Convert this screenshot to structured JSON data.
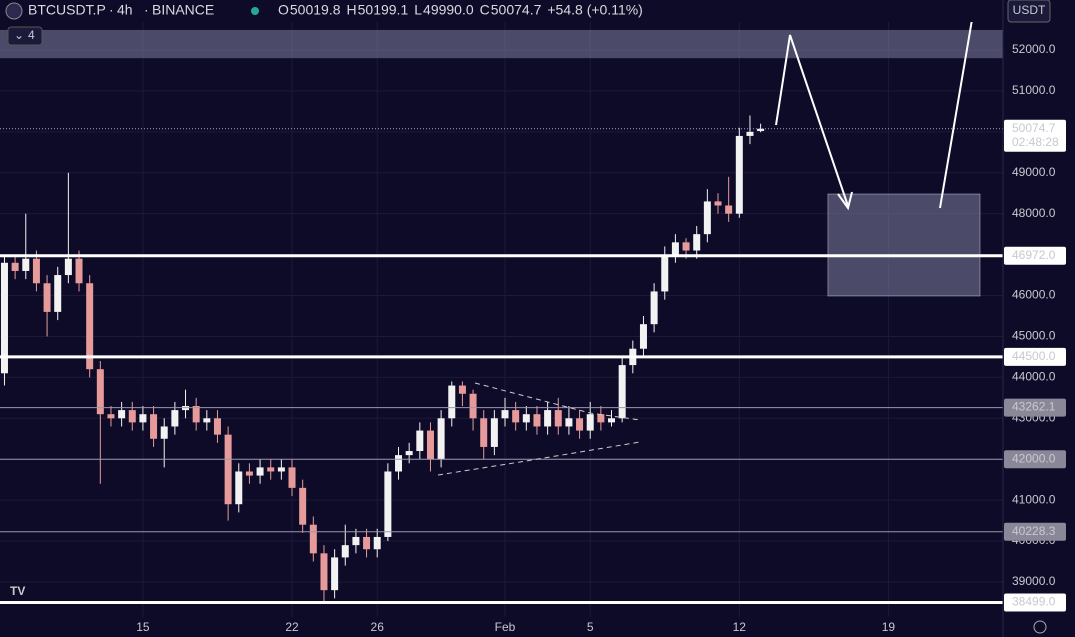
{
  "header": {
    "symbol": "BTCUSDT.P",
    "interval": "4h",
    "exchange": "BINANCE",
    "ohlc": [
      {
        "key": "O",
        "value": "50019.8"
      },
      {
        "key": "H",
        "value": "50199.1"
      },
      {
        "key": "L",
        "value": "49990.0"
      },
      {
        "key": "C",
        "value": "50074.7"
      }
    ],
    "change": "+54.8 (+0.11%)",
    "indicators": "4",
    "currency": "USDT"
  },
  "chart_data": {
    "type": "candlestick",
    "up_color": "#f2f2f2",
    "down_color": "#e79a9a",
    "grid": true,
    "xlim": [
      8.29,
      55.38
    ],
    "ylim": [
      38144,
      53222
    ],
    "xticks": [
      15,
      22,
      26,
      {
        "value": 32,
        "label": "Feb"
      },
      {
        "value": 36,
        "label": "5"
      },
      {
        "value": 43,
        "label": "12"
      },
      {
        "value": 50,
        "label": "19"
      }
    ],
    "yticks": [
      {
        "value": 39000,
        "label": "39000.0"
      },
      {
        "value": 40000,
        "label": "40000.0"
      },
      {
        "value": 41000,
        "label": "41000.0"
      },
      {
        "value": 42000,
        "label": "42000.0"
      },
      {
        "value": 43000,
        "label": "43000.0"
      },
      {
        "value": 44000,
        "label": "44000.0"
      },
      {
        "value": 45000,
        "label": "45000.0"
      },
      {
        "value": 46000,
        "label": "46000.0"
      },
      {
        "value": 47000,
        "label": "47000.0"
      },
      {
        "value": 48000,
        "label": "48000.0"
      },
      {
        "value": 49000,
        "label": "49000.0"
      },
      {
        "value": 50000,
        "label": "50000.0"
      },
      {
        "value": 51000,
        "label": "51000.0"
      },
      {
        "value": 52000,
        "label": "52000.0"
      }
    ],
    "levels": [
      {
        "value": 46972,
        "label": "46972.0",
        "style": "thick"
      },
      {
        "value": 44500,
        "label": "44500.0",
        "style": "thick"
      },
      {
        "value": 43262.1,
        "label": "43262.1",
        "style": "thin"
      },
      {
        "value": 42000,
        "label": "42000.0",
        "style": "thin"
      },
      {
        "value": 40228.3,
        "label": "40228.3",
        "style": "thin"
      },
      {
        "value": 38499,
        "label": "38499.0",
        "style": "thick"
      }
    ],
    "zones": [
      {
        "x": [
          8.29,
          55.38
        ],
        "y": [
          51800,
          52490
        ]
      },
      {
        "x": [
          47.16,
          54.3
        ],
        "y": [
          45990,
          48480
        ]
      }
    ],
    "last_price": 50074.7,
    "countdown": "02:48:28",
    "x": [
      8.5,
      9,
      9.5,
      10,
      10.5,
      11,
      11.5,
      12,
      12.5,
      13,
      13.5,
      14,
      14.5,
      15,
      15.5,
      16,
      16.5,
      17,
      17.5,
      18,
      18.5,
      19,
      19.5,
      20,
      20.5,
      21,
      21.5,
      22,
      22.5,
      23,
      23.5,
      24,
      24.5,
      25,
      25.5,
      26,
      26.5,
      27,
      27.5,
      28,
      28.5,
      29,
      29.5,
      30,
      30.5,
      31,
      31.5,
      32,
      32.5,
      33,
      33.5,
      34,
      34.5,
      35,
      35.5,
      36,
      36.5,
      37,
      37.5,
      38,
      38.5,
      39,
      39.5,
      40,
      40.5,
      41,
      41.5,
      42,
      42.5,
      43,
      43.5,
      44
    ],
    "open": [
      44100,
      46800,
      46600,
      46900,
      46300,
      45600,
      46500,
      46900,
      46300,
      44200,
      43100,
      43000,
      43200,
      42900,
      43100,
      42500,
      42800,
      43200,
      43300,
      42900,
      43000,
      42600,
      40900,
      41700,
      41600,
      41800,
      41700,
      41800,
      41300,
      40400,
      39700,
      38800,
      39600,
      39900,
      40100,
      39800,
      40100,
      41700,
      42100,
      42200,
      42700,
      42000,
      43000,
      43800,
      43600,
      43000,
      42300,
      43000,
      43200,
      42900,
      43100,
      42800,
      43200,
      42800,
      43000,
      42700,
      43100,
      42900,
      43000,
      44300,
      44700,
      45300,
      46100,
      47000,
      47300,
      47100,
      47500,
      48300,
      48200,
      48000,
      49900,
      50019.8
    ],
    "high": [
      47000,
      47000,
      48000,
      47100,
      46500,
      46700,
      49000,
      47100,
      46500,
      44400,
      43300,
      43400,
      43400,
      43300,
      43300,
      43000,
      43400,
      43700,
      43500,
      43200,
      43200,
      42800,
      41900,
      41900,
      42000,
      42000,
      42000,
      42000,
      41500,
      40600,
      39900,
      39800,
      40400,
      40300,
      40300,
      40300,
      41900,
      42300,
      42400,
      42900,
      42900,
      43200,
      43900,
      43900,
      43700,
      43200,
      43200,
      43500,
      43400,
      43300,
      43300,
      43400,
      43500,
      43300,
      43200,
      43400,
      43300,
      43200,
      44500,
      44900,
      45500,
      46300,
      47200,
      47500,
      47400,
      47700,
      48600,
      48500,
      48900,
      50100,
      50400,
      50199.1
    ],
    "low": [
      43800,
      46400,
      46400,
      46100,
      45000,
      45400,
      46300,
      46100,
      44000,
      41400,
      42800,
      42800,
      42700,
      42700,
      42300,
      41800,
      42600,
      43000,
      42700,
      42700,
      42400,
      40500,
      40700,
      41400,
      41400,
      41500,
      41500,
      41100,
      40200,
      39500,
      38500,
      38600,
      39400,
      39700,
      39600,
      39600,
      40000,
      41500,
      41900,
      42000,
      41700,
      41800,
      42800,
      43300,
      42700,
      42000,
      42100,
      42800,
      42700,
      42700,
      42600,
      42600,
      42600,
      42600,
      42500,
      42500,
      42700,
      42800,
      42900,
      44100,
      44500,
      45100,
      45900,
      46800,
      46900,
      46900,
      47300,
      48000,
      47800,
      47900,
      49700,
      49990
    ],
    "close": [
      46800,
      46600,
      46900,
      46300,
      45600,
      46500,
      46900,
      46300,
      44200,
      43100,
      43000,
      43200,
      42900,
      43100,
      42500,
      42800,
      43200,
      43300,
      42900,
      43000,
      42600,
      40900,
      41700,
      41600,
      41800,
      41700,
      41800,
      41300,
      40400,
      39700,
      38800,
      39600,
      39900,
      40100,
      39800,
      40100,
      41700,
      42100,
      42200,
      42700,
      42000,
      43000,
      43800,
      43600,
      43000,
      42300,
      43000,
      43200,
      42900,
      43100,
      42800,
      43200,
      42800,
      43000,
      42700,
      43100,
      42900,
      43000,
      44300,
      44700,
      45300,
      46100,
      47000,
      47300,
      47100,
      47500,
      48300,
      48200,
      48000,
      49900,
      50000,
      50074.7
    ]
  }
}
